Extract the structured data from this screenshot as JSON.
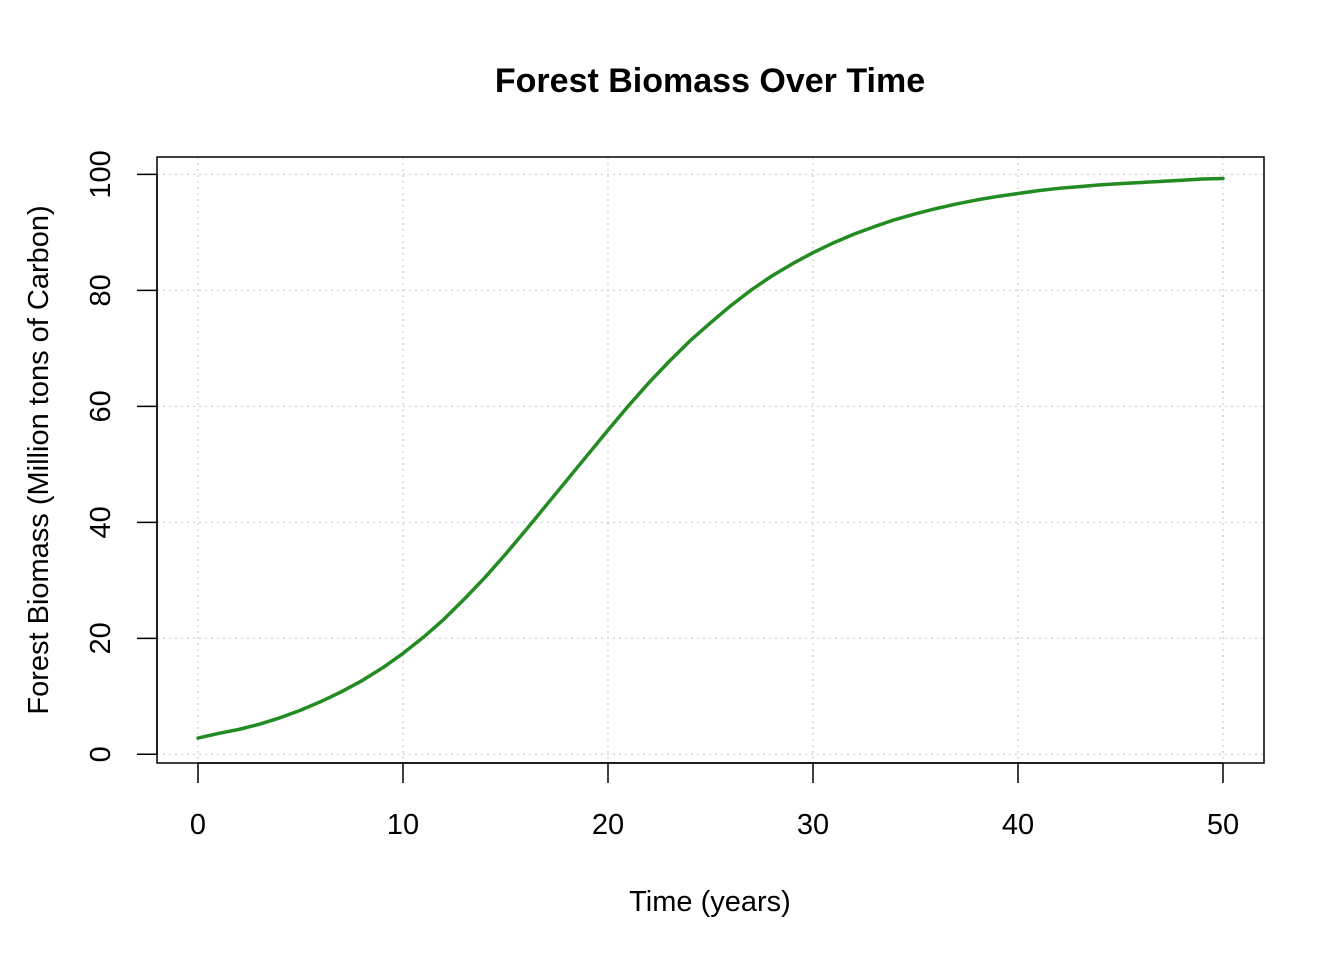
{
  "chart_data": {
    "type": "line",
    "title": "Forest Biomass Over Time",
    "xlabel": "Time (years)",
    "ylabel": "Forest Biomass (Million tons of Carbon)",
    "xlim": [
      -2,
      52
    ],
    "ylim": [
      -1.5,
      103
    ],
    "x_ticks": [
      0,
      10,
      20,
      30,
      40,
      50
    ],
    "y_ticks": [
      0,
      20,
      40,
      60,
      80,
      100
    ],
    "grid": true,
    "legend": "none",
    "series": [
      {
        "color": "#228B22",
        "x": [
          0,
          1,
          2,
          3,
          4,
          5,
          6,
          7,
          8,
          9,
          10,
          11,
          12,
          13,
          14,
          15,
          16,
          17,
          18,
          19,
          20,
          21,
          22,
          23,
          24,
          25,
          26,
          27,
          28,
          29,
          30,
          31,
          32,
          33,
          34,
          35,
          36,
          37,
          38,
          39,
          40,
          41,
          42,
          43,
          44,
          45,
          46,
          47,
          48,
          49,
          50
        ],
        "values": [
          2.8,
          3.6,
          4.3,
          5.2,
          6.3,
          7.6,
          9.1,
          10.8,
          12.7,
          14.9,
          17.4,
          20.2,
          23.3,
          26.8,
          30.5,
          34.5,
          38.7,
          43.0,
          47.3,
          51.6,
          55.9,
          60.1,
          64.1,
          67.8,
          71.3,
          74.4,
          77.4,
          80.1,
          82.5,
          84.6,
          86.5,
          88.2,
          89.7,
          91.0,
          92.2,
          93.2,
          94.1,
          94.9,
          95.6,
          96.2,
          96.7,
          97.2,
          97.6,
          97.9,
          98.2,
          98.4,
          98.6,
          98.8,
          99.0,
          99.2,
          99.3
        ]
      }
    ]
  }
}
